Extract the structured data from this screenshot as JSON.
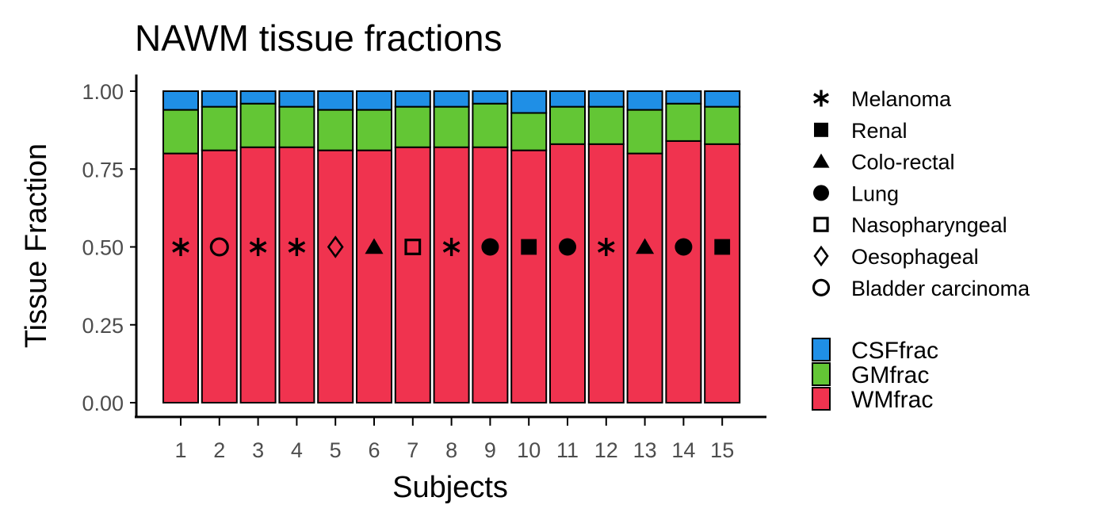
{
  "colors": {
    "WMfrac": "#f0334f",
    "GMfrac": "#63c635",
    "CSFfrac": "#1f8fe6",
    "outline": "#000000"
  },
  "chart_data": {
    "type": "bar",
    "stacked": true,
    "title": "NAWM tissue fractions",
    "xlabel": "Subjects",
    "ylabel": "Tissue Fraction",
    "ylim": [
      0,
      1
    ],
    "yticks": [
      "0.00",
      "0.25",
      "0.50",
      "0.75",
      "1.00"
    ],
    "categories": [
      "1",
      "2",
      "3",
      "4",
      "5",
      "6",
      "7",
      "8",
      "9",
      "10",
      "11",
      "12",
      "13",
      "14",
      "15"
    ],
    "series": [
      {
        "name": "WMfrac",
        "values": [
          0.8,
          0.81,
          0.82,
          0.82,
          0.81,
          0.81,
          0.82,
          0.82,
          0.82,
          0.81,
          0.83,
          0.83,
          0.8,
          0.84,
          0.83
        ]
      },
      {
        "name": "GMfrac",
        "values": [
          0.14,
          0.14,
          0.14,
          0.13,
          0.13,
          0.13,
          0.13,
          0.13,
          0.14,
          0.12,
          0.12,
          0.12,
          0.14,
          0.12,
          0.12
        ]
      },
      {
        "name": "CSFfrac",
        "values": [
          0.06,
          0.05,
          0.04,
          0.05,
          0.06,
          0.06,
          0.05,
          0.05,
          0.04,
          0.07,
          0.05,
          0.05,
          0.06,
          0.04,
          0.05
        ]
      }
    ],
    "marker_y": 0.5,
    "markers": [
      "Melanoma",
      "Bladder carcinoma",
      "Melanoma",
      "Melanoma",
      "Oesophageal",
      "Colo-rectal",
      "Nasopharyngeal",
      "Melanoma",
      "Lung",
      "Renal",
      "Lung",
      "Melanoma",
      "Colo-rectal",
      "Lung",
      "Renal"
    ],
    "shape_legend": [
      {
        "label": "Melanoma",
        "shape": "asterisk"
      },
      {
        "label": "Renal",
        "shape": "filled-square"
      },
      {
        "label": "Colo-rectal",
        "shape": "filled-triangle"
      },
      {
        "label": "Lung",
        "shape": "filled-circle"
      },
      {
        "label": "Nasopharyngeal",
        "shape": "open-square"
      },
      {
        "label": "Oesophageal",
        "shape": "open-diamond"
      },
      {
        "label": "Bladder carcinoma",
        "shape": "open-circle"
      }
    ],
    "fill_legend": [
      "CSFfrac",
      "GMfrac",
      "WMfrac"
    ],
    "grid": false,
    "legend_position": "right"
  }
}
